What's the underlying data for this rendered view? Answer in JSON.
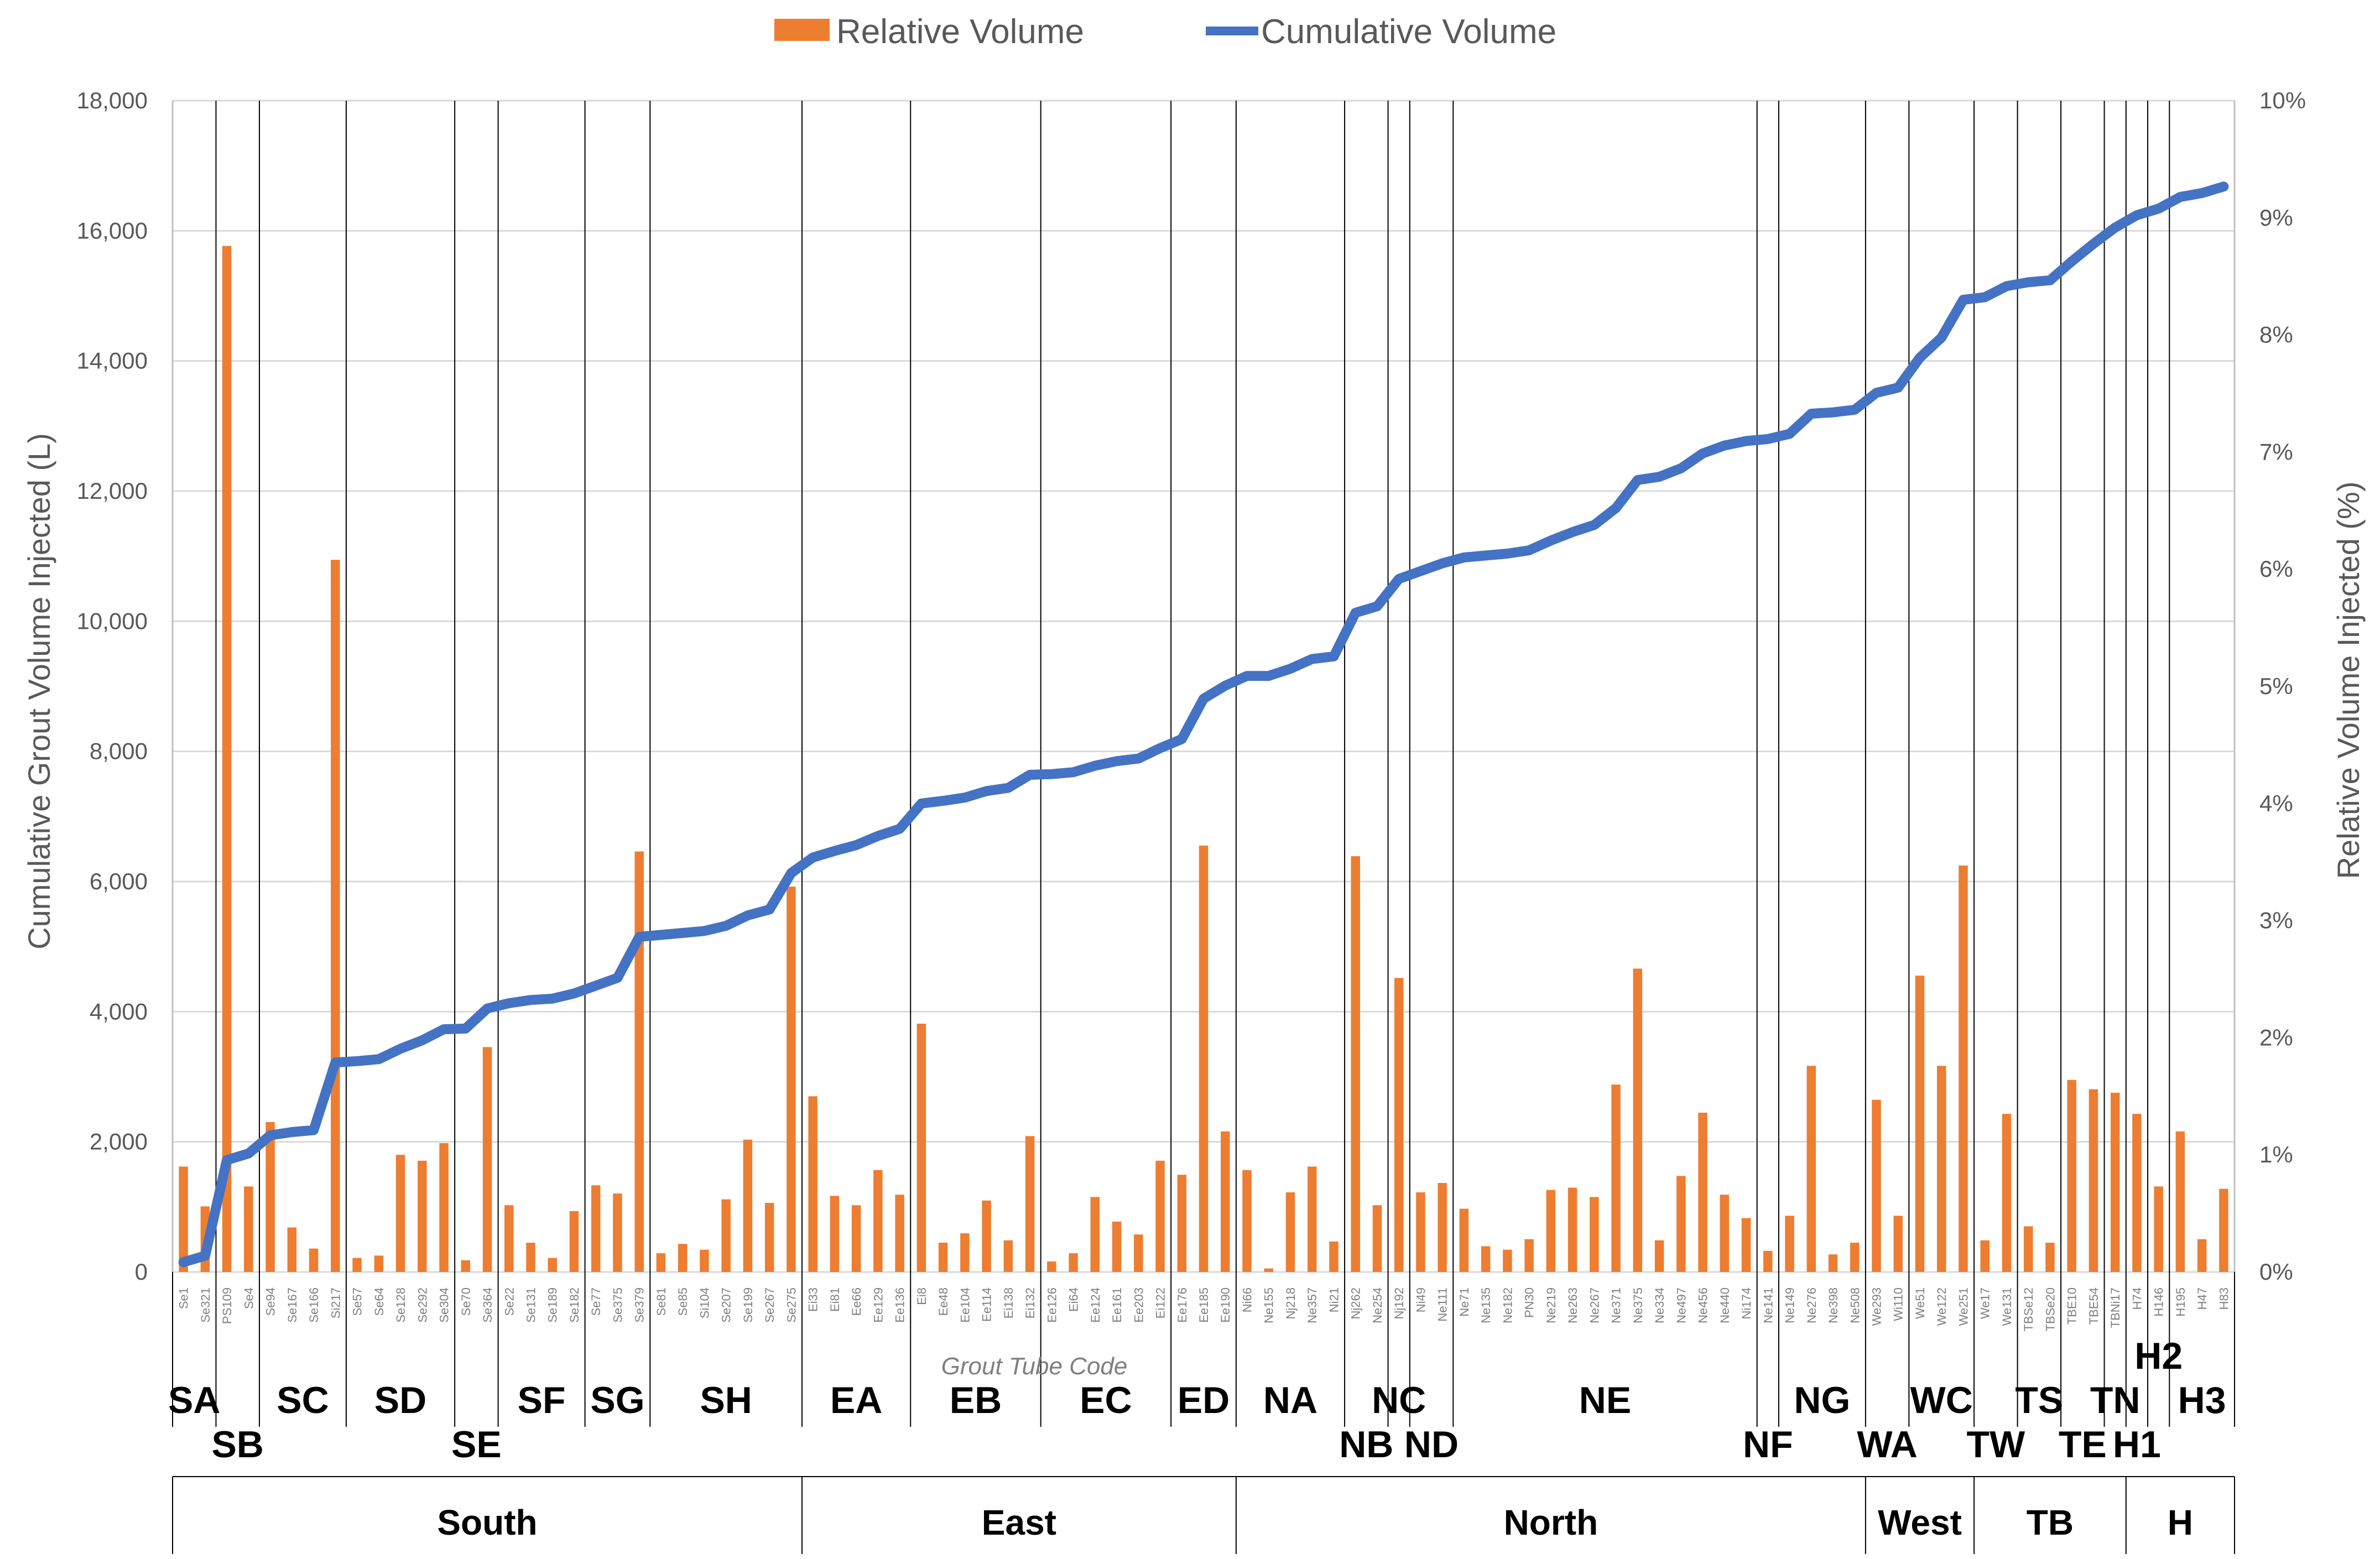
{
  "chart_data": {
    "type": "bar",
    "legend": {
      "placement": "top-center",
      "bar_label": "Relative Volume",
      "line_label": "Cumulative Volume"
    },
    "colors": {
      "bars": "#ED7D31",
      "line": "#4472C4",
      "grid": "#d9d9d9",
      "divider": "#000000"
    },
    "xlabel": "Grout Tube Code",
    "ylabel_left": "Cumulative Grout Volume Injected (L)",
    "ylabel_right": "Relative Volume Injected (%)",
    "ylim_left": [
      0,
      18000
    ],
    "ylim_right": [
      0,
      10
    ],
    "y_ticks_left": [
      "0",
      "2,000",
      "4,000",
      "6,000",
      "8,000",
      "10,000",
      "12,000",
      "14,000",
      "16,000",
      "18,000"
    ],
    "y_ticks_right": [
      "0%",
      "1%",
      "2%",
      "3%",
      "4%",
      "5%",
      "6%",
      "7%",
      "8%",
      "9%",
      "10%"
    ],
    "categories": [
      "Se1",
      "Se321",
      "PS109",
      "Se4",
      "Se94",
      "Se167",
      "Se166",
      "Si217",
      "Se57",
      "Se64",
      "Se128",
      "Se292",
      "Se304",
      "Se70",
      "Se364",
      "Se22",
      "Se131",
      "Se189",
      "Se182",
      "Se77",
      "Se375",
      "Se379",
      "Se81",
      "Se85",
      "Si104",
      "Se207",
      "Se199",
      "Se267",
      "Se275",
      "Ei33",
      "Ei81",
      "Ee66",
      "Ee129",
      "Ee136",
      "Ei8",
      "Ee48",
      "Ee104",
      "Ee114",
      "Ei138",
      "Ei132",
      "Ee126",
      "Ei64",
      "Ee124",
      "Ee161",
      "Ee203",
      "Ei122",
      "Ee176",
      "Ee185",
      "Ee190",
      "Ni66",
      "Ne155",
      "Nj218",
      "Ne357",
      "Ni21",
      "Nj262",
      "Ne254",
      "Nj192",
      "Ni49",
      "Ne111",
      "Ne71",
      "Ne135",
      "Ne182",
      "PN30",
      "Ne219",
      "Ne263",
      "Ne267",
      "Ne371",
      "Ne375",
      "Ne334",
      "Ne497",
      "Ne456",
      "Ne440",
      "Ni174",
      "Ne141",
      "Ne149",
      "Ne276",
      "Ne398",
      "Ne508",
      "We293",
      "Wi110",
      "We51",
      "We122",
      "We251",
      "We17",
      "We131",
      "TBSe12",
      "TBSe20",
      "TBE10",
      "TBE54",
      "TBNi17",
      "H74",
      "H146",
      "H195",
      "H47",
      "H83"
    ],
    "relative_volume_pct": [
      0.9,
      0.56,
      8.76,
      0.73,
      1.28,
      0.38,
      0.2,
      6.08,
      0.12,
      0.14,
      1.0,
      0.95,
      1.1,
      0.1,
      1.92,
      0.57,
      0.25,
      0.12,
      0.52,
      0.74,
      0.67,
      3.59,
      0.16,
      0.24,
      0.19,
      0.62,
      1.13,
      0.59,
      3.29,
      1.5,
      0.65,
      0.57,
      0.87,
      0.66,
      2.12,
      0.25,
      0.33,
      0.61,
      0.27,
      1.16,
      0.09,
      0.16,
      0.64,
      0.43,
      0.32,
      0.95,
      0.83,
      3.64,
      1.2,
      0.87,
      0.03,
      0.68,
      0.9,
      0.26,
      3.55,
      0.57,
      2.51,
      0.68,
      0.76,
      0.54,
      0.22,
      0.19,
      0.28,
      0.7,
      0.72,
      0.64,
      1.6,
      2.59,
      0.27,
      0.82,
      1.36,
      0.66,
      0.46,
      0.18,
      0.48,
      1.76,
      0.15,
      0.25,
      1.47,
      0.48,
      2.53,
      1.76,
      3.47,
      0.27,
      1.35,
      0.39,
      0.25,
      1.64,
      1.56,
      1.53,
      1.35,
      0.73,
      1.2,
      0.28,
      0.71
    ],
    "cumulative_volume_l": [
      150,
      250,
      1720,
      1820,
      2100,
      2150,
      2180,
      3220,
      3240,
      3270,
      3430,
      3560,
      3730,
      3740,
      4050,
      4130,
      4180,
      4200,
      4280,
      4400,
      4520,
      5150,
      5180,
      5210,
      5240,
      5320,
      5480,
      5570,
      6130,
      6370,
      6470,
      6560,
      6700,
      6810,
      7200,
      7240,
      7290,
      7390,
      7440,
      7640,
      7650,
      7680,
      7780,
      7850,
      7890,
      8050,
      8190,
      8810,
      9010,
      9160,
      9160,
      9270,
      9420,
      9460,
      10130,
      10230,
      10650,
      10770,
      10890,
      10980,
      11010,
      11040,
      11090,
      11240,
      11370,
      11480,
      11740,
      12170,
      12220,
      12350,
      12580,
      12700,
      12770,
      12800,
      12880,
      13190,
      13210,
      13250,
      13510,
      13590,
      14050,
      14360,
      14940,
      14980,
      15150,
      15210,
      15240,
      15530,
      15800,
      16050,
      16240,
      16340,
      16520,
      16580,
      16680
    ],
    "groups": [
      {
        "label": "SA",
        "start": 0,
        "end": 2,
        "row": 1
      },
      {
        "label": "SB",
        "start": 2,
        "end": 4,
        "row": 2
      },
      {
        "label": "SC",
        "start": 4,
        "end": 8,
        "row": 1
      },
      {
        "label": "SD",
        "start": 8,
        "end": 13,
        "row": 1
      },
      {
        "label": "SE",
        "start": 13,
        "end": 15,
        "row": 2
      },
      {
        "label": "SF",
        "start": 15,
        "end": 19,
        "row": 1
      },
      {
        "label": "SG",
        "start": 19,
        "end": 22,
        "row": 1
      },
      {
        "label": "SH",
        "start": 22,
        "end": 29,
        "row": 1
      },
      {
        "label": "EA",
        "start": 29,
        "end": 34,
        "row": 1
      },
      {
        "label": "EB",
        "start": 34,
        "end": 40,
        "row": 1
      },
      {
        "label": "EC",
        "start": 40,
        "end": 46,
        "row": 1
      },
      {
        "label": "ED",
        "start": 46,
        "end": 49,
        "row": 1
      },
      {
        "label": "NA",
        "start": 49,
        "end": 54,
        "row": 1
      },
      {
        "label": "NB",
        "start": 54,
        "end": 56,
        "row": 2
      },
      {
        "label": "NC",
        "start": 56,
        "end": 57,
        "row": 1
      },
      {
        "label": "ND",
        "start": 57,
        "end": 59,
        "row": 2
      },
      {
        "label": "NE",
        "start": 59,
        "end": 73,
        "row": 1
      },
      {
        "label": "NF",
        "start": 73,
        "end": 74,
        "row": 2
      },
      {
        "label": "NG",
        "start": 74,
        "end": 78,
        "row": 1
      },
      {
        "label": "WA",
        "start": 78,
        "end": 80,
        "row": 2
      },
      {
        "label": "WC",
        "start": 80,
        "end": 83,
        "row": 1
      },
      {
        "label": "TW",
        "start": 83,
        "end": 85,
        "row": 2
      },
      {
        "label": "TS",
        "start": 85,
        "end": 87,
        "row": 1
      },
      {
        "label": "TE",
        "start": 87,
        "end": 89,
        "row": 2
      },
      {
        "label": "TN",
        "start": 89,
        "end": 90,
        "row": 1
      },
      {
        "label": "H1",
        "start": 90,
        "end": 91,
        "row": 2
      },
      {
        "label": "H2",
        "start": 91,
        "end": 92,
        "row": 0
      },
      {
        "label": "H3",
        "start": 92,
        "end": 95,
        "row": 1
      }
    ],
    "regions": [
      {
        "label": "South",
        "start": 0,
        "end": 29
      },
      {
        "label": "East",
        "start": 29,
        "end": 49
      },
      {
        "label": "North",
        "start": 49,
        "end": 78
      },
      {
        "label": "West",
        "start": 78,
        "end": 83
      },
      {
        "label": "TB",
        "start": 83,
        "end": 90
      },
      {
        "label": "H",
        "start": 90,
        "end": 95
      }
    ]
  }
}
